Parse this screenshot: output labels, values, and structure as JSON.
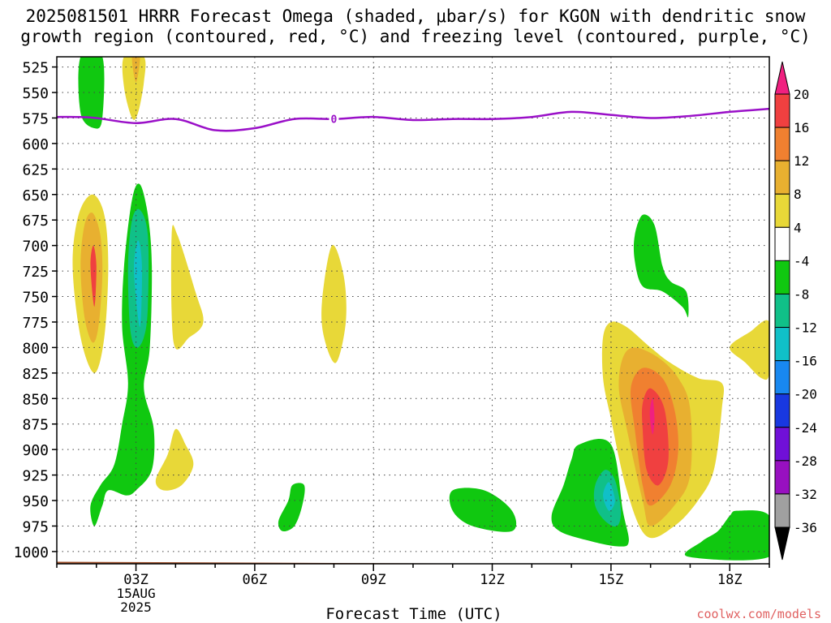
{
  "chart_data": {
    "type": "contour",
    "title_line1": "2025081501 HRRR Forecast Omega (shaded, μbar/s) for KGON with dendritic snow",
    "title_line2": "growth region (contoured, red, °C) and freezing level (contoured, purple, °C)",
    "xlabel": "Forecast Time (UTC)",
    "ylabel": "",
    "y_ticks": [
      "525",
      "550",
      "575",
      "600",
      "625",
      "650",
      "675",
      "700",
      "725",
      "750",
      "775",
      "800",
      "825",
      "850",
      "875",
      "900",
      "925",
      "950",
      "975",
      "1000"
    ],
    "x_ticks": [
      {
        "hour": 3,
        "label": "03Z",
        "sub": [
          "15AUG",
          "2025"
        ]
      },
      {
        "hour": 6,
        "label": "06Z"
      },
      {
        "hour": 9,
        "label": "09Z"
      },
      {
        "hour": 12,
        "label": "12Z"
      },
      {
        "hour": 15,
        "label": "15Z"
      },
      {
        "hour": 18,
        "label": "18Z"
      }
    ],
    "xlim": [
      1,
      19
    ],
    "ylim": [
      1012,
      515
    ],
    "grid": true,
    "colorbar": {
      "labels": [
        "20",
        "16",
        "12",
        "8",
        "4",
        "-4",
        "-8",
        "-12",
        "-16",
        "-20",
        "-24",
        "-28",
        "-32",
        "-36"
      ],
      "colors": [
        "#f02080",
        "#f04040",
        "#f08030",
        "#e8b030",
        "#e8d838",
        "#ffffff",
        "#10c810",
        "#10c088",
        "#10c0c8",
        "#1888f0",
        "#1838e0",
        "#7010d8",
        "#9810c0",
        "#a0a0a0",
        "#000000"
      ]
    },
    "freezing_level_line": {
      "color": "#9a10c8",
      "points": [
        [
          1,
          574
        ],
        [
          1.5,
          574
        ],
        [
          2,
          575
        ],
        [
          3,
          580
        ],
        [
          4,
          576
        ],
        [
          5,
          587
        ],
        [
          6,
          585
        ],
        [
          7,
          576
        ],
        [
          8,
          576
        ],
        [
          9,
          574
        ],
        [
          10,
          577
        ],
        [
          11,
          576
        ],
        [
          12,
          576
        ],
        [
          13,
          574
        ],
        [
          14,
          569
        ],
        [
          15,
          572
        ],
        [
          16,
          575
        ],
        [
          17,
          573
        ],
        [
          18,
          569
        ],
        [
          19,
          566
        ]
      ],
      "label": "0",
      "label_at": [
        8,
        576
      ]
    },
    "shaded_regions": [
      {
        "color": "#10c810",
        "points": [
          [
            1.6,
            515
          ],
          [
            2.15,
            515
          ],
          [
            2.15,
            575
          ],
          [
            1.95,
            585
          ],
          [
            1.6,
            570
          ]
        ]
      },
      {
        "color": "#e8d838",
        "points": [
          [
            2.7,
            515
          ],
          [
            3.2,
            515
          ],
          [
            3.2,
            540
          ],
          [
            3.05,
            570
          ],
          [
            2.9,
            575
          ],
          [
            2.7,
            545
          ]
        ]
      },
      {
        "color": "#e8b030",
        "points": [
          [
            2.9,
            515
          ],
          [
            3.1,
            515
          ],
          [
            3.0,
            540
          ]
        ]
      },
      {
        "color": "#e8d838",
        "points": [
          [
            1.4,
            720
          ],
          [
            1.55,
            670
          ],
          [
            1.9,
            650
          ],
          [
            2.2,
            670
          ],
          [
            2.3,
            720
          ],
          [
            2.2,
            790
          ],
          [
            1.95,
            825
          ],
          [
            1.6,
            790
          ]
        ]
      },
      {
        "color": "#e8b030",
        "points": [
          [
            1.6,
            720
          ],
          [
            1.7,
            680
          ],
          [
            1.9,
            668
          ],
          [
            2.1,
            690
          ],
          [
            2.15,
            730
          ],
          [
            2.05,
            780
          ],
          [
            1.9,
            795
          ],
          [
            1.7,
            770
          ]
        ]
      },
      {
        "color": "#f04040",
        "points": [
          [
            1.85,
            720
          ],
          [
            1.92,
            700
          ],
          [
            2.0,
            720
          ],
          [
            1.95,
            760
          ]
        ]
      },
      {
        "color": "#10c810",
        "points": [
          [
            2.7,
            720
          ],
          [
            2.9,
            655
          ],
          [
            3.1,
            640
          ],
          [
            3.3,
            670
          ],
          [
            3.4,
            720
          ],
          [
            3.35,
            800
          ],
          [
            3.2,
            840
          ],
          [
            3.45,
            880
          ],
          [
            3.4,
            920
          ],
          [
            3.0,
            940
          ],
          [
            2.75,
            945
          ],
          [
            2.3,
            940
          ],
          [
            2.15,
            955
          ],
          [
            1.95,
            975
          ],
          [
            1.85,
            955
          ],
          [
            2.1,
            935
          ],
          [
            2.45,
            915
          ],
          [
            2.65,
            875
          ],
          [
            2.8,
            835
          ],
          [
            2.65,
            780
          ]
        ]
      },
      {
        "color": "#10c088",
        "points": [
          [
            2.8,
            720
          ],
          [
            2.9,
            675
          ],
          [
            3.1,
            665
          ],
          [
            3.3,
            690
          ],
          [
            3.3,
            760
          ],
          [
            3.2,
            790
          ],
          [
            3.0,
            800
          ],
          [
            2.85,
            780
          ]
        ]
      },
      {
        "color": "#10c0c8",
        "points": [
          [
            2.95,
            725
          ],
          [
            3.05,
            695
          ],
          [
            3.15,
            720
          ],
          [
            3.1,
            780
          ]
        ]
      },
      {
        "color": "#e8d838",
        "points": [
          [
            3.9,
            690
          ],
          [
            4.05,
            690
          ],
          [
            4.5,
            745
          ],
          [
            4.7,
            775
          ],
          [
            4.35,
            790
          ],
          [
            3.95,
            795
          ]
        ]
      },
      {
        "color": "#e8d838",
        "points": [
          [
            3.5,
            930
          ],
          [
            3.8,
            905
          ],
          [
            4.0,
            880
          ],
          [
            4.25,
            895
          ],
          [
            4.45,
            915
          ],
          [
            4.15,
            935
          ],
          [
            3.7,
            940
          ]
        ]
      },
      {
        "color": "#e8d838",
        "points": [
          [
            7.7,
            755
          ],
          [
            7.95,
            700
          ],
          [
            8.25,
            730
          ],
          [
            8.3,
            775
          ],
          [
            8.05,
            815
          ],
          [
            7.75,
            790
          ]
        ]
      },
      {
        "color": "#10c810",
        "points": [
          [
            6.6,
            970
          ],
          [
            6.85,
            950
          ],
          [
            6.95,
            935
          ],
          [
            7.25,
            935
          ],
          [
            7.2,
            955
          ],
          [
            7.0,
            975
          ],
          [
            6.7,
            980
          ]
        ]
      },
      {
        "color": "#10c810",
        "points": [
          [
            11.0,
            940
          ],
          [
            11.8,
            940
          ],
          [
            12.5,
            960
          ],
          [
            12.5,
            980
          ],
          [
            11.5,
            975
          ],
          [
            11.0,
            960
          ]
        ]
      },
      {
        "color": "#10c810",
        "points": [
          [
            13.5,
            965
          ],
          [
            13.8,
            935
          ],
          [
            14.0,
            910
          ],
          [
            14.2,
            895
          ],
          [
            15.0,
            895
          ],
          [
            15.3,
            960
          ],
          [
            15.45,
            990
          ],
          [
            15.2,
            995
          ],
          [
            14.5,
            990
          ],
          [
            13.7,
            980
          ]
        ]
      },
      {
        "color": "#10c088",
        "points": [
          [
            14.6,
            935
          ],
          [
            14.85,
            920
          ],
          [
            15.1,
            930
          ],
          [
            15.25,
            960
          ],
          [
            15.15,
            975
          ],
          [
            14.85,
            970
          ],
          [
            14.6,
            955
          ]
        ]
      },
      {
        "color": "#10c0c8",
        "points": [
          [
            14.8,
            945
          ],
          [
            14.95,
            932
          ],
          [
            15.1,
            950
          ],
          [
            14.95,
            960
          ]
        ]
      },
      {
        "color": "#e8d838",
        "points": [
          [
            14.8,
            790
          ],
          [
            15.0,
            775
          ],
          [
            15.4,
            780
          ],
          [
            16.0,
            800
          ],
          [
            16.5,
            815
          ],
          [
            17.2,
            830
          ],
          [
            17.8,
            835
          ],
          [
            17.8,
            860
          ],
          [
            17.6,
            920
          ],
          [
            17.2,
            950
          ],
          [
            16.6,
            975
          ],
          [
            15.9,
            985
          ],
          [
            15.4,
            940
          ],
          [
            15.0,
            870
          ],
          [
            14.8,
            830
          ]
        ]
      },
      {
        "color": "#e8b030",
        "points": [
          [
            15.3,
            810
          ],
          [
            15.6,
            800
          ],
          [
            16.2,
            810
          ],
          [
            16.7,
            830
          ],
          [
            17.0,
            860
          ],
          [
            17.0,
            925
          ],
          [
            16.6,
            955
          ],
          [
            16.0,
            975
          ],
          [
            15.8,
            950
          ],
          [
            15.4,
            880
          ],
          [
            15.2,
            840
          ]
        ]
      },
      {
        "color": "#f08030",
        "points": [
          [
            15.5,
            840
          ],
          [
            15.8,
            820
          ],
          [
            16.3,
            830
          ],
          [
            16.6,
            860
          ],
          [
            16.7,
            900
          ],
          [
            16.5,
            935
          ],
          [
            16.0,
            955
          ],
          [
            15.8,
            935
          ],
          [
            15.6,
            880
          ]
        ]
      },
      {
        "color": "#f04040",
        "points": [
          [
            15.8,
            855
          ],
          [
            16.0,
            840
          ],
          [
            16.35,
            860
          ],
          [
            16.45,
            910
          ],
          [
            16.2,
            935
          ],
          [
            15.9,
            920
          ],
          [
            15.8,
            880
          ]
        ]
      },
      {
        "color": "#f02080",
        "points": [
          [
            15.98,
            865
          ],
          [
            16.05,
            850
          ],
          [
            16.1,
            870
          ],
          [
            16.05,
            885
          ]
        ]
      },
      {
        "color": "#10c810",
        "points": [
          [
            15.6,
            690
          ],
          [
            15.8,
            670
          ],
          [
            16.1,
            680
          ],
          [
            16.3,
            720
          ],
          [
            16.5,
            735
          ],
          [
            16.9,
            745
          ],
          [
            16.95,
            770
          ],
          [
            16.8,
            760
          ],
          [
            16.3,
            745
          ],
          [
            15.8,
            740
          ],
          [
            15.6,
            715
          ]
        ]
      },
      {
        "color": "#e8d838",
        "points": [
          [
            18.0,
            800
          ],
          [
            18.5,
            785
          ],
          [
            19.0,
            775
          ],
          [
            19.0,
            825
          ],
          [
            18.8,
            830
          ],
          [
            18.4,
            815
          ]
        ]
      },
      {
        "color": "#10c810",
        "points": [
          [
            16.95,
            1005
          ],
          [
            17.3,
            990
          ],
          [
            17.7,
            980
          ],
          [
            18.0,
            965
          ],
          [
            18.2,
            960
          ],
          [
            19.0,
            965
          ],
          [
            19.0,
            1005
          ]
        ]
      }
    ],
    "terrain": {
      "color": "#a0522d",
      "top_pressure_start": 1010,
      "top_pressure_end": 1013
    }
  },
  "credit": "coolwx.com/models"
}
